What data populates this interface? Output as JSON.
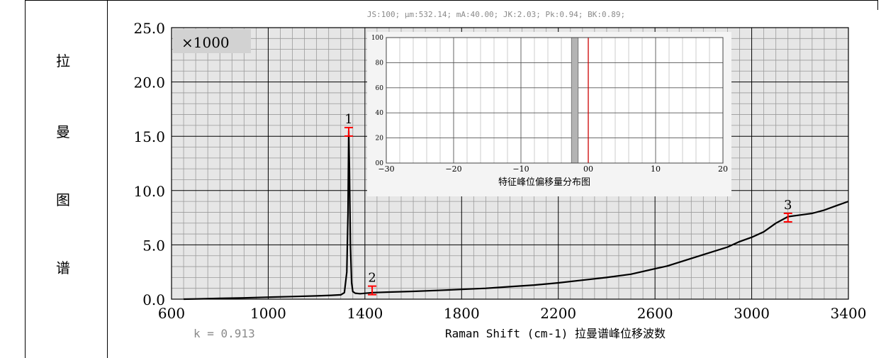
{
  "side_title_chars": [
    "拉",
    "曼",
    "图",
    "谱"
  ],
  "info_line": "JS:100; μm:532.14; mA:40.00; JK:2.03; Pk:0.94; BK:0.89;",
  "k_label": "k = 0.913",
  "multiplier_label": "×1000",
  "colors": {
    "plot_bg": "#e6e6e6",
    "grid_major": "#000000",
    "grid_minor": "#9a9a9a",
    "curve": "#000000",
    "marker": "#ff0000",
    "inset_bar": "#b4b4b4",
    "inset_line": "#cc0000"
  },
  "chart_data": [
    {
      "type": "line",
      "xlabel": "Raman Shift (cm-1)  拉曼谱峰位移波数",
      "ylabel": "",
      "xlim": [
        600,
        3400
      ],
      "ylim": [
        0,
        25
      ],
      "x_ticks": [
        600,
        1000,
        1400,
        1800,
        2200,
        2600,
        3000,
        3400
      ],
      "x_tick_labels": [
        "600",
        "1000",
        "1400",
        "1800",
        "2200",
        "2600",
        "3000",
        "3400"
      ],
      "y_ticks": [
        0,
        5,
        10,
        15,
        20,
        25
      ],
      "y_tick_labels": [
        "0.0",
        "5.0",
        "10.0",
        "15.0",
        "20.0",
        "25.0"
      ],
      "grid": true,
      "series": [
        {
          "x": [
            650,
            700,
            800,
            900,
            1000,
            1100,
            1200,
            1260,
            1300,
            1315,
            1325,
            1330,
            1333,
            1336,
            1340,
            1345,
            1350,
            1360,
            1380,
            1430,
            1500,
            1600,
            1700,
            1800,
            1900,
            2000,
            2100,
            2200,
            2300,
            2400,
            2500,
            2600,
            2650,
            2700,
            2800,
            2900,
            2950,
            3000,
            3050,
            3100,
            3150,
            3200,
            3250,
            3300,
            3350,
            3400
          ],
          "y": [
            0.0,
            0.02,
            0.07,
            0.12,
            0.18,
            0.24,
            0.3,
            0.35,
            0.4,
            0.6,
            2.5,
            8.0,
            15.5,
            12.0,
            5.0,
            1.5,
            0.7,
            0.55,
            0.5,
            0.6,
            0.65,
            0.72,
            0.8,
            0.9,
            1.0,
            1.15,
            1.3,
            1.5,
            1.75,
            2.0,
            2.3,
            2.8,
            3.05,
            3.4,
            4.1,
            4.8,
            5.3,
            5.7,
            6.2,
            7.0,
            7.6,
            7.75,
            7.9,
            8.2,
            8.6,
            9.0
          ]
        }
      ],
      "peak_markers": [
        {
          "label": "1",
          "x": 1333,
          "y": 15.8
        },
        {
          "label": "2",
          "x": 1430,
          "y": 1.2
        },
        {
          "label": "3",
          "x": 3150,
          "y": 7.9
        }
      ]
    },
    {
      "type": "bar",
      "title": "特征峰位偏移量分布图",
      "xlim": [
        -30,
        20
      ],
      "ylim": [
        0,
        100
      ],
      "x_ticks": [
        -30,
        -20,
        -10,
        0,
        10,
        20
      ],
      "x_tick_labels": [
        "−30",
        "−20",
        "−10",
        "00",
        "10",
        "20"
      ],
      "y_ticks": [
        0,
        20,
        40,
        60,
        80,
        100
      ],
      "y_tick_labels": [
        "00",
        "20",
        "40",
        "60",
        "80",
        "100"
      ],
      "grid": true,
      "bars": [
        {
          "x_start": -2.5,
          "x_end": -1.5,
          "value": 100
        }
      ],
      "reference_line_x": 0
    }
  ]
}
